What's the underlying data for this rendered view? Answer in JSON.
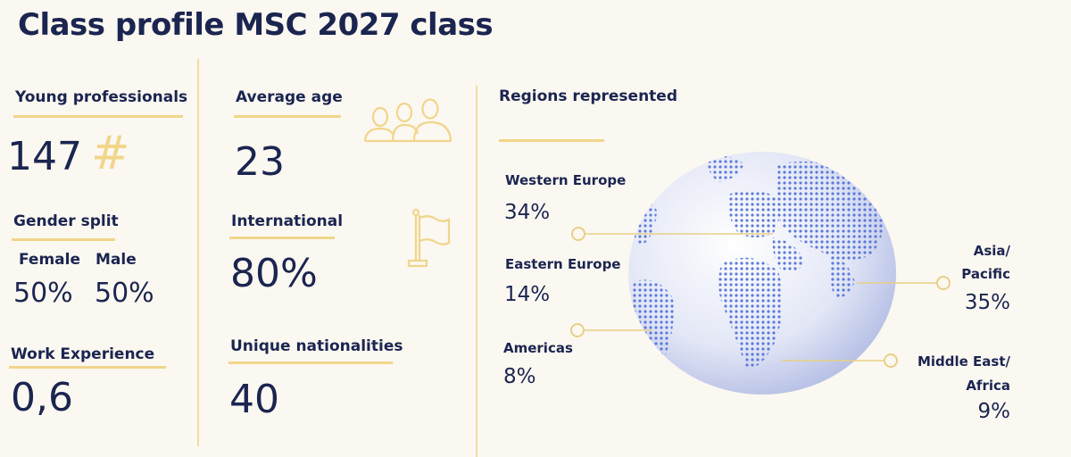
{
  "title": "Class profile MSC 2027 class",
  "young_professionals": {
    "label": "Young professionals",
    "value": "147",
    "icon": "hash-icon",
    "symbol": "#"
  },
  "gender_split": {
    "label": "Gender split",
    "female_label": "Female",
    "female_value": "50%",
    "male_label": "Male",
    "male_value": "50%"
  },
  "work_experience": {
    "label": "Work Experience",
    "value": "0,6"
  },
  "average_age": {
    "label": "Average age",
    "value": "23",
    "icon": "people-icon"
  },
  "international": {
    "label": "International",
    "value": "80%",
    "icon": "flag-icon"
  },
  "unique_nationalities": {
    "label": "Unique nationalities",
    "value": "40"
  },
  "regions": {
    "label": "Regions represented",
    "icon": "globe-icon",
    "western_europe": {
      "label": "Western Europe",
      "value": "34%"
    },
    "eastern_europe": {
      "label": "Eastern Europe",
      "value": "14%"
    },
    "americas": {
      "label": "Americas",
      "value": "8%"
    },
    "asia_pacific": {
      "label_1": "Asia/",
      "label_2": "Pacific",
      "value": "35%"
    },
    "middle_east_africa": {
      "label_1": "Middle East/",
      "label_2": "Africa",
      "value": "9%"
    }
  },
  "colors": {
    "navy": "#1b2550",
    "gold": "#f1d58a",
    "background": "#fbf8f1",
    "globe_dots": "#4f6fd8"
  }
}
